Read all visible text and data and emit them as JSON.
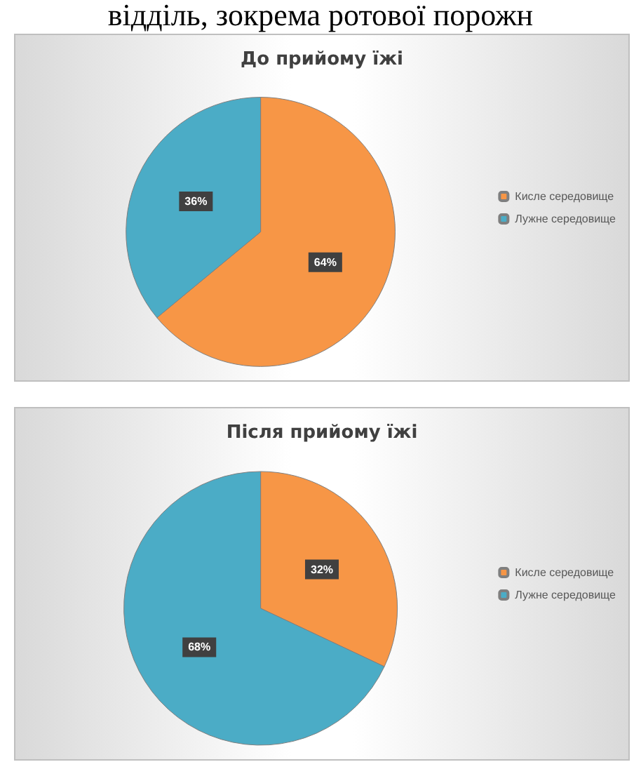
{
  "chart_data": [
    {
      "type": "pie",
      "title": "До прийому їжі",
      "annotations": [
        "відділь, зокрема ротової порожн"
      ],
      "categories": [
        "Кисле середовище",
        "Лужне середовище"
      ],
      "values": [
        64,
        36
      ],
      "value_labels": [
        "64%",
        "36%"
      ],
      "colors": [
        "#f79646",
        "#4bacc6"
      ],
      "legend": "right"
    },
    {
      "type": "pie",
      "title": "Після прийому їжі",
      "categories": [
        "Кисле середовище",
        "Лужне середовище"
      ],
      "values": [
        32,
        68
      ],
      "value_labels": [
        "32%",
        "68%"
      ],
      "colors": [
        "#f79646",
        "#4bacc6"
      ],
      "legend": "right"
    }
  ]
}
